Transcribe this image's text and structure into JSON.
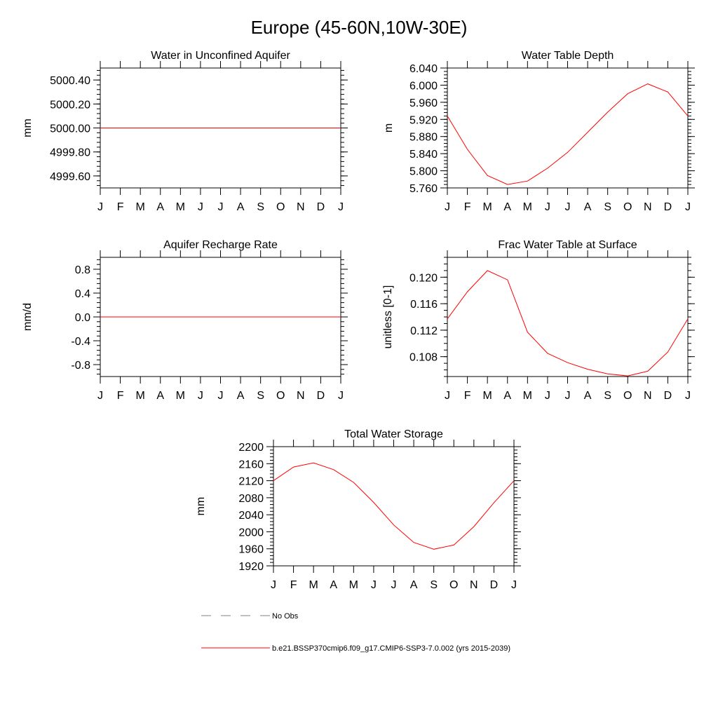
{
  "title": "Europe (45-60N,10W-30E)",
  "colors": {
    "model": "#ff0000",
    "obs": "#808080",
    "axis": "#000000"
  },
  "legend": {
    "obs_label": "No Obs",
    "model_label": "b.e21.BSSP370cmip6.f09_g17.CMIP6-SSP3-7.0.002 (yrs 2015-2039)"
  },
  "chart_data": [
    {
      "type": "line",
      "title": "Water in Unconfined Aquifer",
      "ylabel": "mm",
      "categories": [
        "J",
        "F",
        "M",
        "A",
        "M",
        "J",
        "J",
        "A",
        "S",
        "O",
        "N",
        "D",
        "J"
      ],
      "ylim": [
        4999.5,
        5000.5
      ],
      "yticks": [
        4999.6,
        4999.8,
        5000.0,
        5000.2,
        5000.4
      ],
      "ytick_labels": [
        "4999.60",
        "4999.80",
        "5000.00",
        "5000.20",
        "5000.40"
      ],
      "minor_step": 0.04,
      "series": [
        {
          "name": "model",
          "values": [
            5000,
            5000,
            5000,
            5000,
            5000,
            5000,
            5000,
            5000,
            5000,
            5000,
            5000,
            5000,
            5000
          ]
        }
      ]
    },
    {
      "type": "line",
      "title": "Water Table Depth",
      "ylabel": "m",
      "categories": [
        "J",
        "F",
        "M",
        "A",
        "M",
        "J",
        "J",
        "A",
        "S",
        "O",
        "N",
        "D",
        "J"
      ],
      "ylim": [
        5.76,
        6.04
      ],
      "yticks": [
        5.76,
        5.8,
        5.84,
        5.88,
        5.92,
        5.96,
        6.0,
        6.04
      ],
      "ytick_labels": [
        "5.760",
        "5.800",
        "5.840",
        "5.880",
        "5.920",
        "5.960",
        "6.000",
        "6.040"
      ],
      "minor_step": 0.008,
      "series": [
        {
          "name": "model",
          "values": [
            5.928,
            5.85,
            5.789,
            5.768,
            5.776,
            5.806,
            5.843,
            5.89,
            5.937,
            5.98,
            6.003,
            5.984,
            5.928
          ]
        }
      ]
    },
    {
      "type": "line",
      "title": "Aquifer Recharge Rate",
      "ylabel": "mm/d",
      "categories": [
        "J",
        "F",
        "M",
        "A",
        "M",
        "J",
        "J",
        "A",
        "S",
        "O",
        "N",
        "D",
        "J"
      ],
      "ylim": [
        -1.0,
        1.0
      ],
      "yticks": [
        -0.8,
        -0.4,
        0.0,
        0.4,
        0.8
      ],
      "ytick_labels": [
        "-0.8",
        "-0.4",
        "0.0",
        "0.4",
        "0.8"
      ],
      "minor_step": 0.08,
      "series": [
        {
          "name": "model",
          "values": [
            0,
            0,
            0,
            0,
            0,
            0,
            0,
            0,
            0,
            0,
            0,
            0,
            0
          ]
        }
      ]
    },
    {
      "type": "line",
      "title": "Frac Water Table at Surface",
      "ylabel": "unitless [0-1]",
      "categories": [
        "J",
        "F",
        "M",
        "A",
        "M",
        "J",
        "J",
        "A",
        "S",
        "O",
        "N",
        "D",
        "J"
      ],
      "ylim": [
        0.105,
        0.123
      ],
      "yticks": [
        0.108,
        0.112,
        0.116,
        0.12
      ],
      "ytick_labels": [
        "0.108",
        "0.112",
        "0.116",
        "0.120"
      ],
      "minor_step": 0.001,
      "series": [
        {
          "name": "model",
          "values": [
            0.1137,
            0.1178,
            0.121,
            0.1196,
            0.1117,
            0.1085,
            0.1071,
            0.1061,
            0.1054,
            0.1051,
            0.1058,
            0.1087,
            0.1137
          ]
        }
      ]
    },
    {
      "type": "line",
      "title": "Total Water Storage",
      "ylabel": "mm",
      "categories": [
        "J",
        "F",
        "M",
        "A",
        "M",
        "J",
        "J",
        "A",
        "S",
        "O",
        "N",
        "D",
        "J"
      ],
      "ylim": [
        1920,
        2200
      ],
      "yticks": [
        1920,
        1960,
        2000,
        2040,
        2080,
        2120,
        2160,
        2200
      ],
      "ytick_labels": [
        "1920",
        "1960",
        "2000",
        "2040",
        "2080",
        "2120",
        "2160",
        "2200"
      ],
      "minor_step": 8,
      "series": [
        {
          "name": "model",
          "values": [
            2120,
            2152,
            2162,
            2146,
            2116,
            2069,
            2016,
            1975,
            1959,
            1969,
            2012,
            2068,
            2120
          ]
        }
      ]
    }
  ]
}
